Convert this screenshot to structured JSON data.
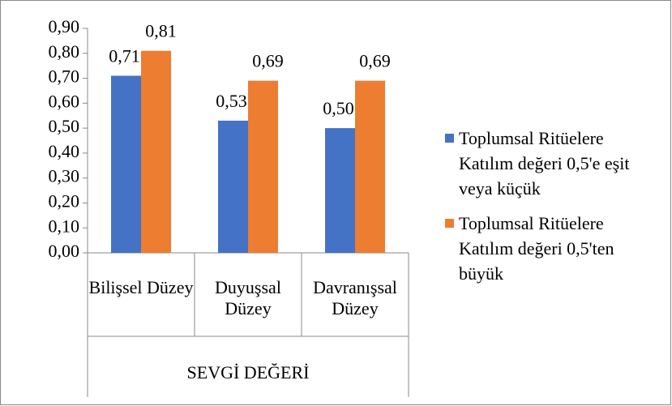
{
  "chart_data": {
    "type": "bar",
    "x_label": "SEVGİ DEĞERİ",
    "categories": [
      "Bilişsel Düzey",
      "Duyuşsal Düzey",
      "Davranışsal Düzey"
    ],
    "series": [
      {
        "name": "Toplumsal Ritüelere Katılım değeri 0,5'e eşit veya küçük",
        "color": "#4472c4",
        "values": [
          0.71,
          0.53,
          0.5
        ],
        "value_labels": [
          "0,71",
          "0,53",
          "0,50"
        ]
      },
      {
        "name": "Toplumsal Ritüelere Katılım değeri 0,5'ten büyük",
        "color": "#ed7d31",
        "values": [
          0.81,
          0.69,
          0.69
        ],
        "value_labels": [
          "0,81",
          "0,69",
          "0,69"
        ]
      }
    ],
    "ylim": [
      0,
      0.9
    ],
    "yticks": [
      {
        "value": 0,
        "label": "0,00"
      },
      {
        "value": 0.1,
        "label": "0,10"
      },
      {
        "value": 0.2,
        "label": "0,20"
      },
      {
        "value": 0.3,
        "label": "0,30"
      },
      {
        "value": 0.4,
        "label": "0,40"
      },
      {
        "value": 0.5,
        "label": "0,50"
      },
      {
        "value": 0.6,
        "label": "0,60"
      },
      {
        "value": 0.7,
        "label": "0,70"
      },
      {
        "value": 0.8,
        "label": "0,80"
      },
      {
        "value": 0.9,
        "label": "0,90"
      }
    ],
    "legend": "right"
  }
}
